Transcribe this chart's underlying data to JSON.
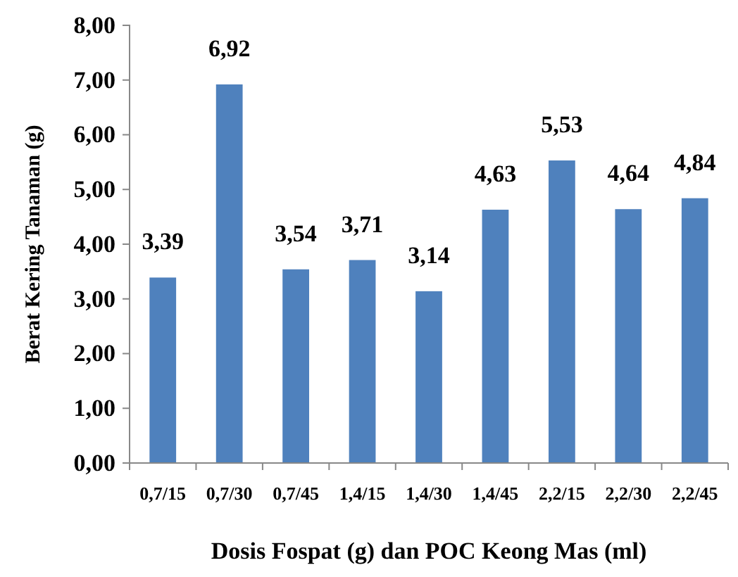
{
  "chart_data": {
    "type": "bar",
    "xlabel": "Dosis Fospat (g) dan POC Keong Mas (ml)",
    "ylabel": "Berat Kering Tanaman (g)",
    "categories": [
      "0,7/15",
      "0,7/30",
      "0,7/45",
      "1,4/15",
      "1,4/30",
      "1,4/45",
      "2,2/15",
      "2,2/30",
      "2,2/45"
    ],
    "values": [
      3.39,
      6.92,
      3.54,
      3.71,
      3.14,
      4.63,
      5.53,
      4.64,
      4.84
    ],
    "value_labels": [
      "3,39",
      "6,92",
      "3,54",
      "3,71",
      "3,14",
      "4,63",
      "5,53",
      "4,64",
      "4,84"
    ],
    "color": "#4f81bd",
    "ylim": [
      0,
      8
    ],
    "yticks": [
      {
        "value": 0,
        "label": "0,00"
      },
      {
        "value": 1,
        "label": "1,00"
      },
      {
        "value": 2,
        "label": "2,00"
      },
      {
        "value": 3,
        "label": "3,00"
      },
      {
        "value": 4,
        "label": "4,00"
      },
      {
        "value": 5,
        "label": "5,00"
      },
      {
        "value": 6,
        "label": "6,00"
      },
      {
        "value": 7,
        "label": "7,00"
      },
      {
        "value": 8,
        "label": "8,00"
      }
    ],
    "grid": false
  }
}
